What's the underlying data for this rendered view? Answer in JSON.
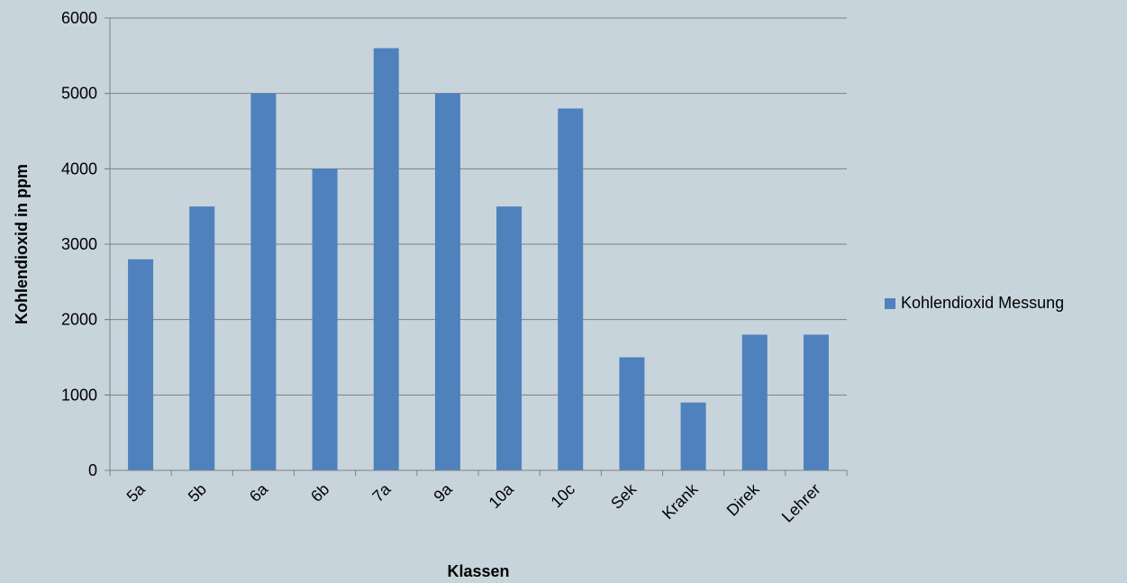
{
  "chart_data": {
    "type": "bar",
    "categories": [
      "5a",
      "5b",
      "6a",
      "6b",
      "7a",
      "9a",
      "10a",
      "10c",
      "Sek",
      "Krank",
      "Direk",
      "Lehrer"
    ],
    "series": [
      {
        "name": "Kohlendioxid Messung",
        "values": [
          2800,
          3500,
          5000,
          4000,
          5600,
          5000,
          3500,
          4800,
          1500,
          900,
          1800,
          1800
        ],
        "color": "#4f81bd"
      }
    ],
    "xlabel": "Klassen",
    "ylabel": "Kohlendioxid in ppm",
    "ylim": [
      0,
      6000
    ],
    "yticks": [
      0,
      1000,
      2000,
      3000,
      4000,
      5000,
      6000
    ],
    "grid": true,
    "legend_position": "right",
    "colors": {
      "background": "#c8d4dc",
      "grid": "#7f7f7f",
      "bar": "#4f81bd"
    }
  }
}
